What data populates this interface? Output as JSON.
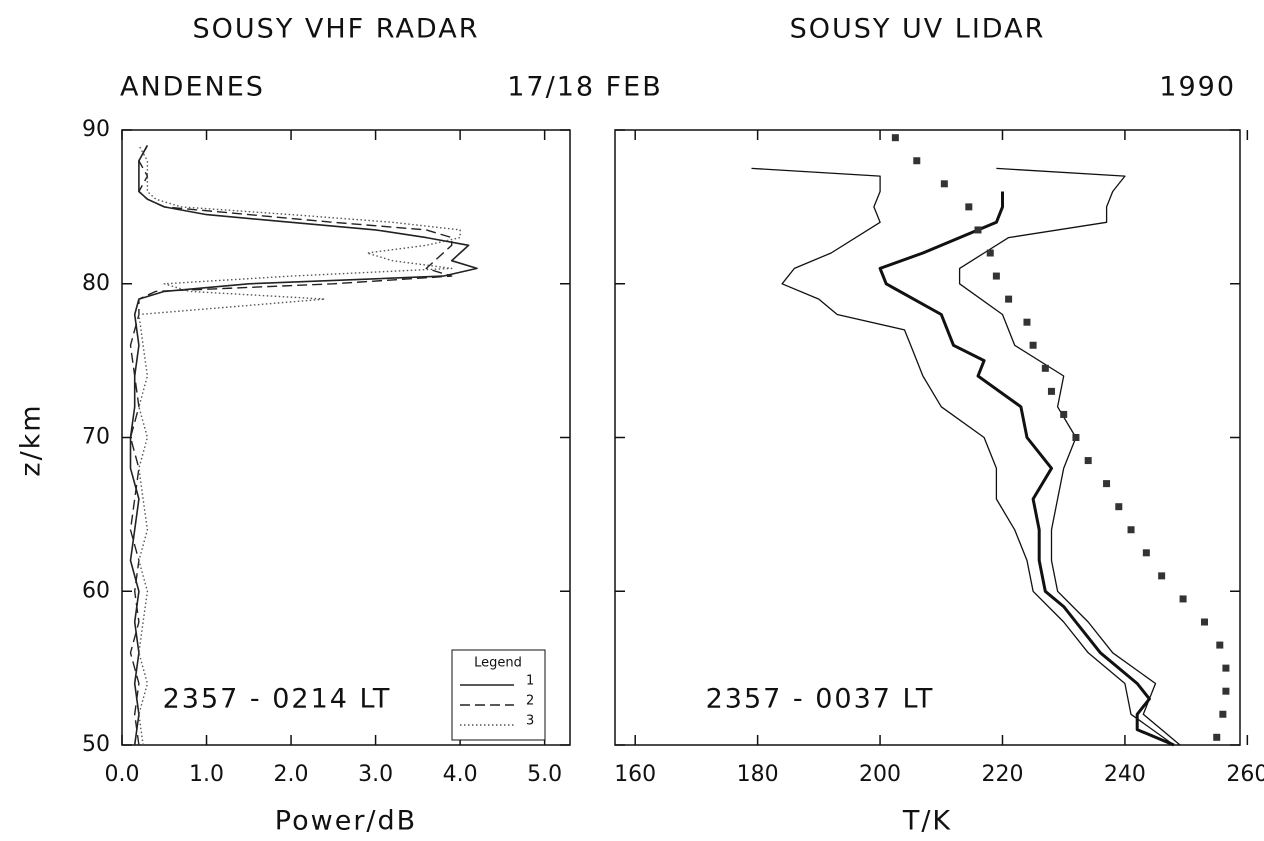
{
  "header": {
    "location": "ANDENES",
    "date": "17/18 FEB",
    "year": "1990"
  },
  "chart_data": [
    {
      "type": "line",
      "title": "SOUSY VHF RADAR",
      "xlabel": "Power/dB",
      "ylabel": "z/km",
      "annotation": "2357 - 0214 LT",
      "legend_title": "Legend",
      "legend": "lower right",
      "xlim": [
        0,
        5.3
      ],
      "ylim": [
        50,
        90
      ],
      "xticks": [
        {
          "value": 0,
          "label": "0.0"
        },
        {
          "value": 1,
          "label": "1.0"
        },
        {
          "value": 2,
          "label": "2.0"
        },
        {
          "value": 3,
          "label": "3.0"
        },
        {
          "value": 4,
          "label": "4.0"
        },
        {
          "value": 5,
          "label": "5.0"
        }
      ],
      "yticks": [
        50,
        60,
        70,
        80,
        90
      ],
      "series": [
        {
          "name": "1",
          "color": "#222222",
          "dash": "solid",
          "width": 1.6,
          "z": [
            50,
            52,
            54,
            56,
            58,
            60,
            62,
            64,
            66,
            68,
            70,
            72,
            74,
            76,
            78,
            79,
            79.5,
            80,
            80.5,
            81,
            81.5,
            82,
            82.5,
            83,
            83.5,
            84,
            84.5,
            85,
            85.5,
            86,
            87,
            88,
            89
          ],
          "values": [
            0.15,
            0.2,
            0.15,
            0.2,
            0.15,
            0.2,
            0.1,
            0.15,
            0.2,
            0.1,
            0.1,
            0.15,
            0.15,
            0.2,
            0.15,
            0.2,
            0.5,
            1.5,
            3.8,
            4.2,
            3.9,
            4.0,
            4.1,
            3.6,
            3.0,
            2.0,
            1.0,
            0.5,
            0.3,
            0.2,
            0.2,
            0.2,
            0.3
          ]
        },
        {
          "name": "2",
          "color": "#222222",
          "dash": "dashed",
          "width": 1.4,
          "z": [
            50,
            52,
            54,
            56,
            58,
            60,
            62,
            64,
            66,
            68,
            70,
            72,
            74,
            76,
            78,
            79,
            79.5,
            80,
            80.5,
            81,
            81.5,
            82,
            82.5,
            83,
            83.5,
            84,
            84.5,
            85,
            85.5,
            86,
            87,
            88,
            89
          ],
          "values": [
            0.2,
            0.15,
            0.2,
            0.1,
            0.2,
            0.15,
            0.2,
            0.1,
            0.15,
            0.2,
            0.1,
            0.2,
            0.15,
            0.1,
            0.2,
            0.2,
            0.4,
            2.5,
            3.9,
            3.6,
            3.7,
            3.8,
            3.9,
            3.9,
            3.6,
            2.5,
            1.5,
            0.5,
            0.3,
            0.2,
            0.3,
            0.2,
            0.3
          ]
        },
        {
          "name": "3",
          "color": "#555555",
          "dash": "dotted",
          "width": 1.4,
          "z": [
            50,
            52,
            54,
            56,
            58,
            60,
            62,
            64,
            66,
            68,
            70,
            72,
            74,
            76,
            78,
            79,
            79.5,
            80,
            80.5,
            81,
            81.5,
            82,
            82.5,
            83,
            83.5,
            84,
            84.5,
            85,
            85.5,
            86,
            87,
            88,
            89
          ],
          "values": [
            0.25,
            0.2,
            0.3,
            0.2,
            0.25,
            0.3,
            0.2,
            0.3,
            0.25,
            0.2,
            0.3,
            0.2,
            0.3,
            0.25,
            0.2,
            2.4,
            0.8,
            0.5,
            2.0,
            3.9,
            3.2,
            2.9,
            3.6,
            4.0,
            4.0,
            3.2,
            2.0,
            0.7,
            0.4,
            0.3,
            0.3,
            0.3,
            0.2
          ]
        }
      ]
    },
    {
      "type": "line",
      "title": "SOUSY UV LIDAR",
      "xlabel": "T/K",
      "annotation": "2357 - 0037 LT",
      "xlim": [
        156.7,
        258.8
      ],
      "ylim": [
        50,
        90
      ],
      "xticks": [
        160,
        180,
        200,
        220,
        240,
        260
      ],
      "yticks": [
        50,
        60,
        70,
        80,
        90
      ],
      "series": [
        {
          "color": "#111111",
          "dash": "solid",
          "width": 1.3,
          "z": [
            50,
            52,
            54,
            56,
            58,
            60,
            62,
            64,
            66,
            68,
            70,
            72,
            74,
            76,
            77,
            78,
            79,
            80,
            81,
            82,
            84,
            85,
            86,
            87,
            87.5
          ],
          "values": [
            248,
            241,
            240,
            234,
            230,
            225,
            224,
            222,
            219,
            219,
            217,
            210,
            207,
            205,
            204,
            193,
            190,
            184,
            186,
            192,
            200,
            199,
            200,
            200,
            179
          ]
        },
        {
          "color": "#111111",
          "dash": "solid",
          "width": 3,
          "z": [
            50,
            51,
            52,
            53,
            54,
            56,
            58,
            59,
            60,
            62,
            64,
            66,
            68,
            70,
            72,
            74,
            75,
            76,
            78,
            80,
            81,
            82,
            84,
            85,
            86
          ],
          "values": [
            248,
            242,
            242,
            244,
            242,
            236,
            232,
            230,
            227,
            226,
            226,
            225,
            228,
            224,
            223,
            216,
            217,
            212,
            210,
            201,
            200,
            207,
            219,
            220,
            220
          ]
        },
        {
          "color": "#111111",
          "dash": "solid",
          "width": 1.3,
          "z": [
            50,
            52,
            54,
            56,
            58,
            60,
            62,
            64,
            66,
            68,
            70,
            72,
            74,
            76,
            78,
            80,
            81,
            82,
            83,
            84,
            85,
            86,
            87,
            87.5
          ],
          "values": [
            249,
            243,
            245,
            238,
            234,
            229,
            228,
            228,
            229,
            230,
            232,
            229,
            230,
            222,
            220,
            213,
            213,
            217,
            221,
            237,
            237,
            238,
            240,
            219
          ]
        },
        {
          "color": "#333333",
          "marker": "square",
          "z": [
            50.5,
            52,
            53.5,
            55,
            56.5,
            58,
            59.5,
            61,
            62.5,
            64,
            65.5,
            67,
            68.5,
            70,
            71.5,
            73,
            74.5,
            76,
            77.5,
            79,
            80.5,
            82,
            83.5,
            85,
            86.5,
            88,
            89.5
          ],
          "values": [
            255,
            256,
            256.5,
            256.5,
            255.5,
            253,
            249.5,
            246,
            243.5,
            241,
            239,
            237,
            234,
            232,
            230,
            228,
            227,
            225,
            224,
            221,
            219,
            218,
            216,
            214.5,
            210.5,
            206,
            202.5
          ]
        }
      ]
    }
  ]
}
